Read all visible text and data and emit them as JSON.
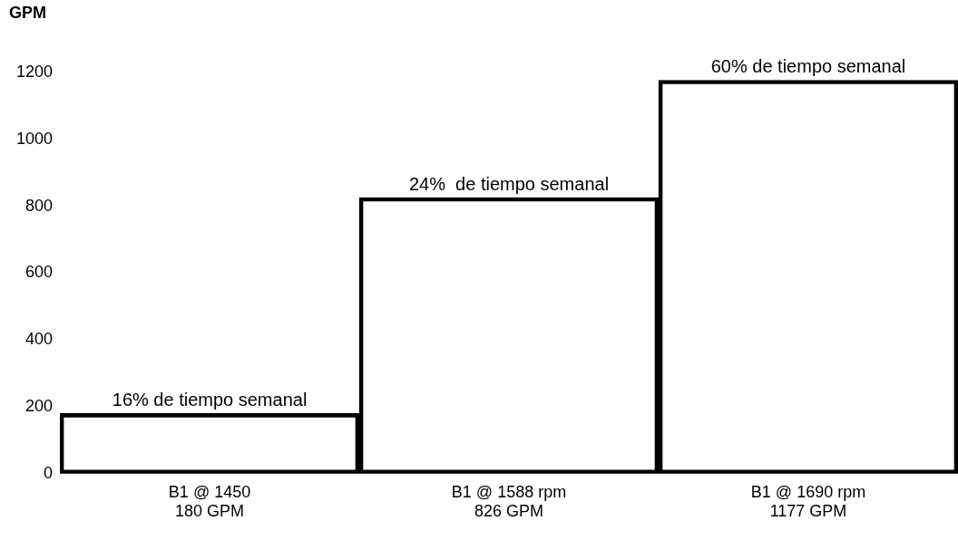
{
  "chart_data": {
    "type": "bar",
    "ylabel": "GPM",
    "categories": [
      "B1 @ 1450\n180 GPM",
      "B1 @ 1588 rpm\n826 GPM",
      "B1 @ 1690 rpm\n1177 GPM"
    ],
    "values": [
      180,
      826,
      1177
    ],
    "color": "#000000",
    "ylim": [
      0,
      1200
    ],
    "yticks": [
      0,
      200,
      400,
      600,
      800,
      1000,
      1200
    ],
    "grid": false,
    "legend": false,
    "annotations": [
      {
        "text": "16% de tiempo semanal",
        "x": "B1 @ 1450\n180 GPM",
        "y": 180
      },
      {
        "text": "24%  de tiempo semanal",
        "x": "B1 @ 1588 rpm\n826 GPM",
        "y": 826
      },
      {
        "text": "60% de tiempo semanal",
        "x": "B1 @ 1690 rpm\n1177 GPM",
        "y": 1177
      }
    ]
  }
}
